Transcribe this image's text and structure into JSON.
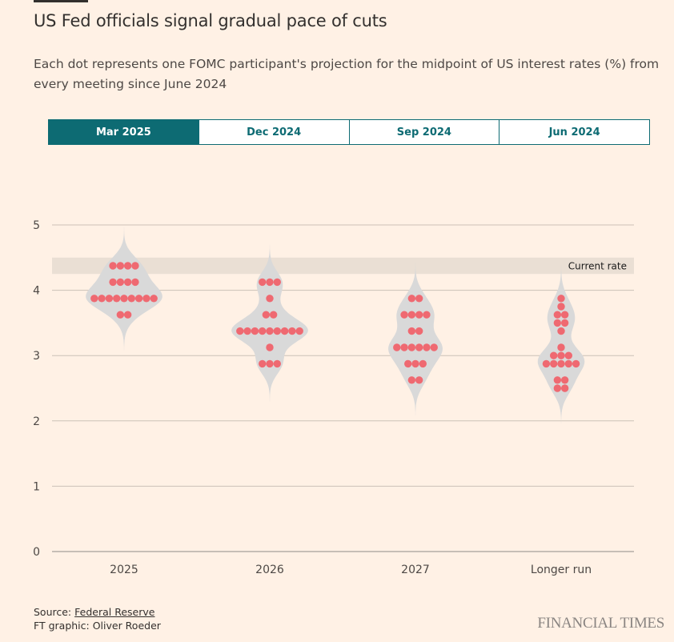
{
  "header": {
    "title": "US Fed officials signal gradual pace of cuts",
    "subtitle": "Each dot represents one FOMC participant's projection for the midpoint of US interest rates (%) from every meeting since June 2024"
  },
  "tabs": [
    {
      "label": "Mar 2025",
      "active": true
    },
    {
      "label": "Dec 2024",
      "active": false
    },
    {
      "label": "Sep 2024",
      "active": false
    },
    {
      "label": "Jun 2024",
      "active": false
    }
  ],
  "chart_data": {
    "type": "scatter",
    "subtype": "violin-dot-plot",
    "categories": [
      "2025",
      "2026",
      "2027",
      "Longer run"
    ],
    "ylim": [
      0,
      5
    ],
    "yticks": [
      0,
      1,
      2,
      3,
      4,
      5
    ],
    "grid": true,
    "reference_band": {
      "label": "Current rate",
      "from": 4.25,
      "to": 4.5
    },
    "series": [
      {
        "category": "2025",
        "values": [
          {
            "y": 4.375,
            "count": 4
          },
          {
            "y": 4.125,
            "count": 4
          },
          {
            "y": 3.875,
            "count": 9
          },
          {
            "y": 3.625,
            "count": 2
          }
        ]
      },
      {
        "category": "2026",
        "values": [
          {
            "y": 4.125,
            "count": 3
          },
          {
            "y": 3.875,
            "count": 1
          },
          {
            "y": 3.625,
            "count": 2
          },
          {
            "y": 3.375,
            "count": 9
          },
          {
            "y": 3.125,
            "count": 1
          },
          {
            "y": 2.875,
            "count": 3
          }
        ]
      },
      {
        "category": "2027",
        "values": [
          {
            "y": 3.875,
            "count": 2
          },
          {
            "y": 3.625,
            "count": 4
          },
          {
            "y": 3.375,
            "count": 2
          },
          {
            "y": 3.125,
            "count": 6
          },
          {
            "y": 2.875,
            "count": 3
          },
          {
            "y": 2.625,
            "count": 2
          }
        ]
      },
      {
        "category": "Longer run",
        "values": [
          {
            "y": 3.875,
            "count": 1
          },
          {
            "y": 3.75,
            "count": 1
          },
          {
            "y": 3.625,
            "count": 2
          },
          {
            "y": 3.5,
            "count": 2
          },
          {
            "y": 3.375,
            "count": 1
          },
          {
            "y": 3.125,
            "count": 1
          },
          {
            "y": 3.0,
            "count": 3
          },
          {
            "y": 2.875,
            "count": 5
          },
          {
            "y": 2.625,
            "count": 2
          },
          {
            "y": 2.5,
            "count": 2
          }
        ]
      }
    ],
    "colors": {
      "dot": "#f0636c",
      "violin": "#d9d9d9",
      "band": "#e9ddd3",
      "grid": "#ccc1b7"
    }
  },
  "footer": {
    "source_prefix": "Source: ",
    "source_link": "Federal Reserve",
    "credit": "FT graphic: Oliver Roeder",
    "logo": "FINANCIAL TIMES"
  }
}
